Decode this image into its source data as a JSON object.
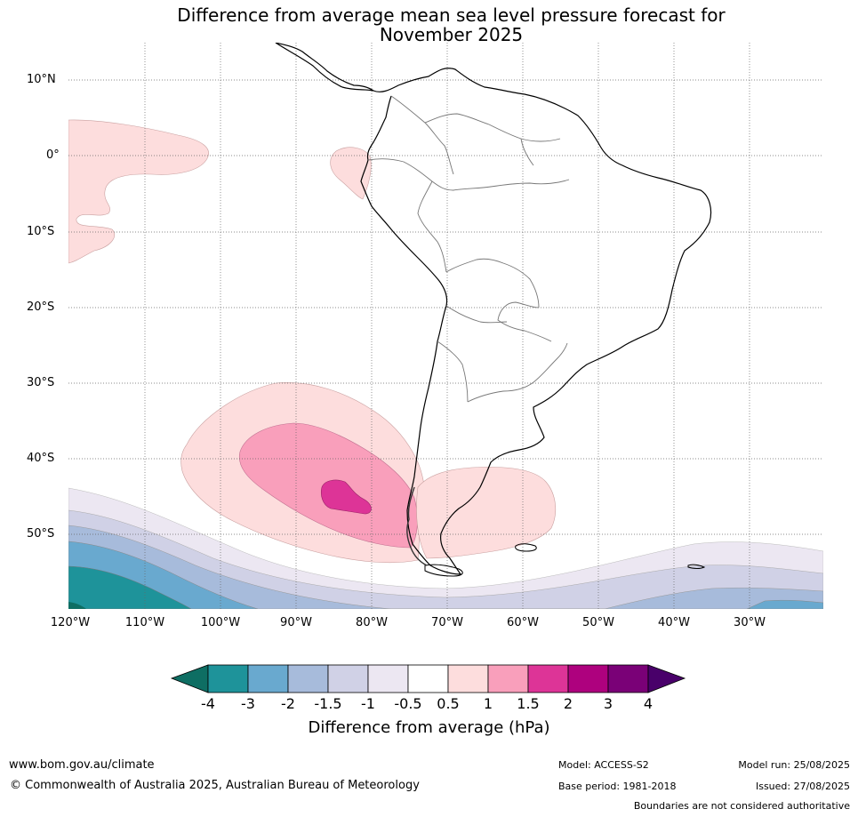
{
  "title": {
    "line1": "Difference from average mean sea level pressure forecast for",
    "line2": "November 2025"
  },
  "map": {
    "region": "South America",
    "lat_labels": [
      "10°N",
      "0°",
      "10°S",
      "20°S",
      "30°S",
      "40°S",
      "50°S"
    ],
    "lon_labels": [
      "120°W",
      "110°W",
      "100°W",
      "90°W",
      "80°W",
      "70°W",
      "60°W",
      "50°W",
      "40°W",
      "30°W"
    ],
    "gridlines": "dotted",
    "anomalies": [
      {
        "name": "Eastern Pacific positive anomaly",
        "level": "0.5 to 1"
      },
      {
        "name": "Near Ecuador coast positive anomaly",
        "level": "0.5 to 1"
      },
      {
        "name": "Southeast Pacific high anomaly",
        "level": "0.5 to 1"
      },
      {
        "name": "Southeast Pacific high anomaly core",
        "level": "1 to 1.5"
      },
      {
        "name": "Southeast Pacific high anomaly centre",
        "level": "1.5 to 2"
      },
      {
        "name": "South Atlantic positive anomaly",
        "level": "0.5 to 1"
      },
      {
        "name": "Southern Ocean negative anomaly",
        "level": "-0.5 to -4"
      }
    ]
  },
  "colorbar": {
    "title": "Difference from average (hPa)",
    "ticks": [
      "-4",
      "-3",
      "-2",
      "-1.5",
      "-1",
      "-0.5",
      "0.5",
      "1",
      "1.5",
      "2",
      "3",
      "4"
    ],
    "colors": [
      "#0e6e63",
      "#1e939a",
      "#69a9cf",
      "#a7bbdb",
      "#d0d1e6",
      "#ece7f2",
      "#ffffff",
      "#fddddd",
      "#f99fbb",
      "#dd3497",
      "#ae017e",
      "#7a0177",
      "#49006a"
    ]
  },
  "footer": {
    "website": "www.bom.gov.au/climate",
    "copyright": "© Commonwealth of Australia 2025, Australian Bureau of Meteorology",
    "model": "Model: ACCESS-S2",
    "base_period": "Base period: 1981-2018",
    "model_run": "Model run: 25/08/2025",
    "issued": "Issued: 27/08/2025",
    "disclaimer": "Boundaries are not considered authoritative"
  }
}
